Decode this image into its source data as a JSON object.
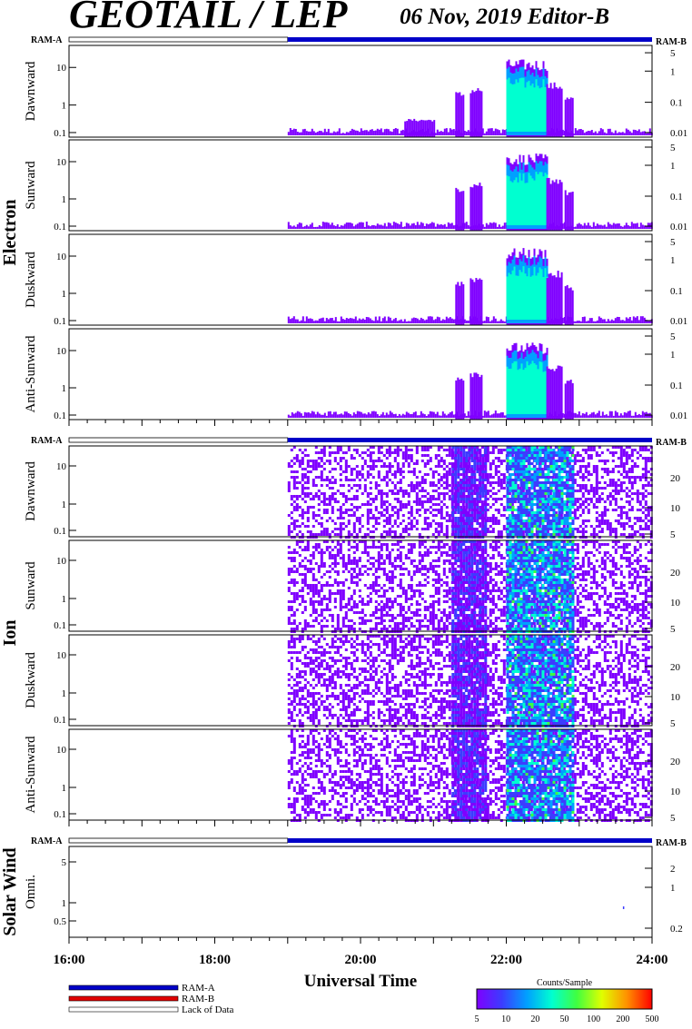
{
  "header": {
    "title": "GEOTAIL / LEP",
    "subtitle": "06 Nov, 2019   Editor-B"
  },
  "ram_labels": {
    "left": "RAM-A",
    "right": "RAM-B"
  },
  "groups": [
    {
      "name": "Electron",
      "panel_start": 0,
      "panel_count": 4
    },
    {
      "name": "Ion",
      "panel_start": 4,
      "panel_count": 4
    },
    {
      "name": "Solar Wind",
      "panel_start": 8,
      "panel_count": 1
    }
  ],
  "chart_data": {
    "type": "heatmap",
    "description_axis": "x is Universal Time in hours",
    "xlim": [
      16,
      24
    ],
    "x_ticks": [
      16,
      18,
      20,
      22,
      24
    ],
    "x_tick_labels": [
      "16:00",
      "18:00",
      "20:00",
      "22:00",
      "24:00"
    ],
    "xlabel": "Universal Time",
    "data_start_hour": 19.0,
    "ram_bar": {
      "lack_of_data_until": 19.0,
      "ram_a_from": 19.0,
      "ram_a_until": 24.0
    },
    "panels": [
      {
        "group": "Electron",
        "label": "Dawnward",
        "left_ticks": [
          "10",
          "1",
          "0.1"
        ],
        "right_ticks": [
          "5",
          "1",
          "0.1",
          "0.01"
        ],
        "bursts": [
          [
            19.0,
            24.0,
            0.15
          ],
          [
            20.6,
            21.0,
            0.2
          ],
          [
            21.3,
            21.4,
            0.5
          ],
          [
            21.5,
            21.65,
            0.55
          ],
          [
            22.0,
            22.55,
            0.85
          ],
          [
            22.55,
            22.75,
            0.6
          ],
          [
            22.8,
            22.9,
            0.45
          ]
        ]
      },
      {
        "group": "Electron",
        "label": "Sunward",
        "left_ticks": [
          "10",
          "1",
          "0.1"
        ],
        "right_ticks": [
          "5",
          "1",
          "0.1",
          "0.01"
        ],
        "bursts": [
          [
            19.0,
            24.0,
            0.15
          ],
          [
            21.3,
            21.4,
            0.5
          ],
          [
            21.5,
            21.65,
            0.55
          ],
          [
            22.0,
            22.55,
            0.85
          ],
          [
            22.55,
            22.75,
            0.6
          ],
          [
            22.8,
            22.9,
            0.45
          ]
        ]
      },
      {
        "group": "Electron",
        "label": "Duskward",
        "left_ticks": [
          "10",
          "1",
          "0.1"
        ],
        "right_ticks": [
          "5",
          "1",
          "0.1",
          "0.01"
        ],
        "bursts": [
          [
            19.0,
            24.0,
            0.15
          ],
          [
            21.3,
            21.4,
            0.5
          ],
          [
            21.5,
            21.65,
            0.55
          ],
          [
            22.0,
            22.55,
            0.85
          ],
          [
            22.55,
            22.75,
            0.6
          ],
          [
            22.8,
            22.9,
            0.45
          ]
        ]
      },
      {
        "group": "Electron",
        "label": "Anti-Sunward",
        "left_ticks": [
          "10",
          "1",
          "0.1"
        ],
        "right_ticks": [
          "5",
          "1",
          "0.1",
          "0.01"
        ],
        "bursts": [
          [
            19.0,
            24.0,
            0.15
          ],
          [
            21.3,
            21.4,
            0.5
          ],
          [
            21.5,
            21.65,
            0.55
          ],
          [
            22.0,
            22.55,
            0.85
          ],
          [
            22.55,
            22.75,
            0.6
          ],
          [
            22.8,
            22.9,
            0.45
          ]
        ]
      },
      {
        "group": "Ion",
        "label": "Dawnward",
        "left_ticks": [
          "10",
          "1",
          "0.1"
        ],
        "right_ticks": [
          "20",
          "10",
          "5"
        ],
        "bursts": [
          [
            19.0,
            24.0,
            0.95
          ],
          [
            21.25,
            21.7,
            1.0
          ],
          [
            22.0,
            22.9,
            0.95
          ]
        ]
      },
      {
        "group": "Ion",
        "label": "Sunward",
        "left_ticks": [
          "10",
          "1",
          "0.1"
        ],
        "right_ticks": [
          "20",
          "10",
          "5"
        ],
        "bursts": [
          [
            19.0,
            24.0,
            0.95
          ],
          [
            21.25,
            21.7,
            1.0
          ],
          [
            22.0,
            22.9,
            0.95
          ]
        ]
      },
      {
        "group": "Ion",
        "label": "Duskward",
        "left_ticks": [
          "10",
          "1",
          "0.1"
        ],
        "right_ticks": [
          "20",
          "10",
          "5"
        ],
        "bursts": [
          [
            19.0,
            24.0,
            0.95
          ],
          [
            21.25,
            21.7,
            1.0
          ],
          [
            22.0,
            22.9,
            0.95
          ]
        ]
      },
      {
        "group": "Ion",
        "label": "Anti-Sunward",
        "left_ticks": [
          "10",
          "1",
          "0.1"
        ],
        "right_ticks": [
          "20",
          "10",
          "5"
        ],
        "bursts": [
          [
            19.0,
            24.0,
            0.95
          ],
          [
            21.25,
            21.7,
            1.0
          ],
          [
            22.0,
            22.9,
            0.95
          ]
        ]
      },
      {
        "group": "Solar Wind",
        "label": "Omni.",
        "left_ticks": [
          "5",
          "1",
          "0.5"
        ],
        "right_ticks": [
          "2",
          "1",
          "0.2"
        ],
        "bursts": []
      }
    ],
    "colorbar": {
      "label": "Counts/Sample",
      "tick_labels": [
        "5",
        "10",
        "20",
        "50",
        "100",
        "200",
        "500"
      ],
      "colors": [
        "#7f00ff",
        "#3c3cff",
        "#00a0ff",
        "#00ffd0",
        "#40ff40",
        "#e0ff00",
        "#ff9000",
        "#ff0000"
      ]
    },
    "legend": [
      {
        "label": "RAM-A",
        "color": "#0000c8"
      },
      {
        "label": "RAM-B",
        "color": "#e00000"
      },
      {
        "label": "Lack of Data",
        "color": "#ffffff"
      }
    ]
  }
}
